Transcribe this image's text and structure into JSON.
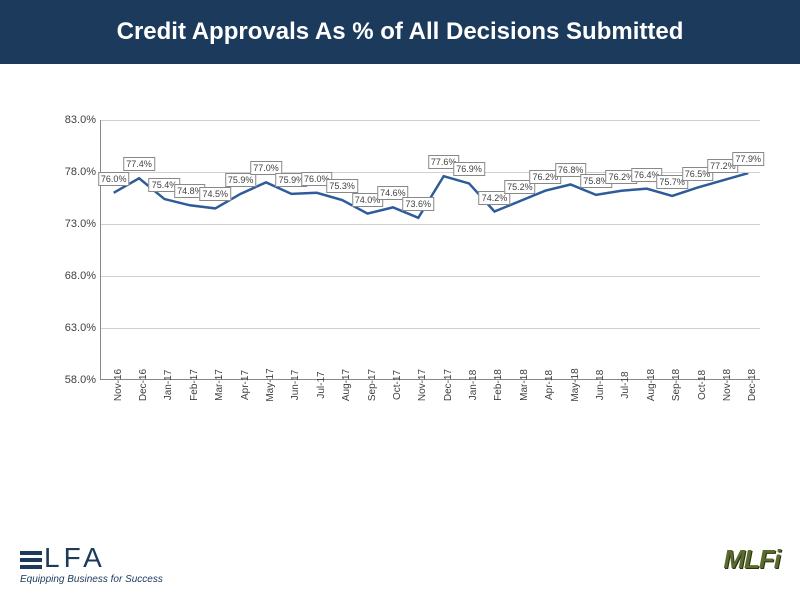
{
  "title": "Credit Approvals As % of All Decisions Submitted",
  "chart": {
    "type": "line",
    "line_color": "#2e5c9a",
    "line_width": 2.5,
    "background_color": "#ffffff",
    "grid_color": "#d0d0d0",
    "title_bar_bg": "#1b3a5c",
    "title_color": "#ffffff",
    "ylim": [
      58.0,
      83.0
    ],
    "yticks": [
      58.0,
      63.0,
      68.0,
      73.0,
      78.0,
      83.0
    ],
    "ytick_labels": [
      "58.0%",
      "63.0%",
      "68.0%",
      "73.0%",
      "78.0%",
      "83.0%"
    ],
    "categories": [
      "Nov-16",
      "Dec-16",
      "Jan-17",
      "Feb-17",
      "Mar-17",
      "Apr-17",
      "May-17",
      "Jun-17",
      "Jul-17",
      "Aug-17",
      "Sep-17",
      "Oct-17",
      "Nov-17",
      "Dec-17",
      "Jan-18",
      "Feb-18",
      "Mar-18",
      "Apr-18",
      "May-18",
      "Jun-18",
      "Jul-18",
      "Aug-18",
      "Sep-18",
      "Oct-18",
      "Nov-18",
      "Dec-18"
    ],
    "values": [
      76.0,
      77.4,
      75.4,
      74.8,
      74.5,
      75.9,
      77.0,
      75.9,
      76.0,
      75.3,
      74.0,
      74.6,
      73.6,
      77.6,
      76.9,
      74.2,
      75.2,
      76.2,
      76.8,
      75.8,
      76.2,
      76.4,
      75.7,
      76.5,
      77.2,
      77.9
    ],
    "value_labels": [
      "76.0%",
      "77.4%",
      "75.4%",
      "74.8%",
      "74.5%",
      "75.9%",
      "77.0%",
      "75.9%",
      "76.0%",
      "75.3%",
      "74.0%",
      "74.6%",
      "73.6%",
      "77.6%",
      "76.9%",
      "74.2%",
      "75.2%",
      "76.2%",
      "76.8%",
      "75.8%",
      "76.2%",
      "76.4%",
      "75.7%",
      "76.5%",
      "77.2%",
      "77.9%"
    ],
    "label_fontsize": 9,
    "axis_fontsize": 11
  },
  "logos": {
    "elfa_text": "LFA",
    "elfa_tagline": "Equipping Business for Success",
    "mlfi_text": "MLFi"
  }
}
